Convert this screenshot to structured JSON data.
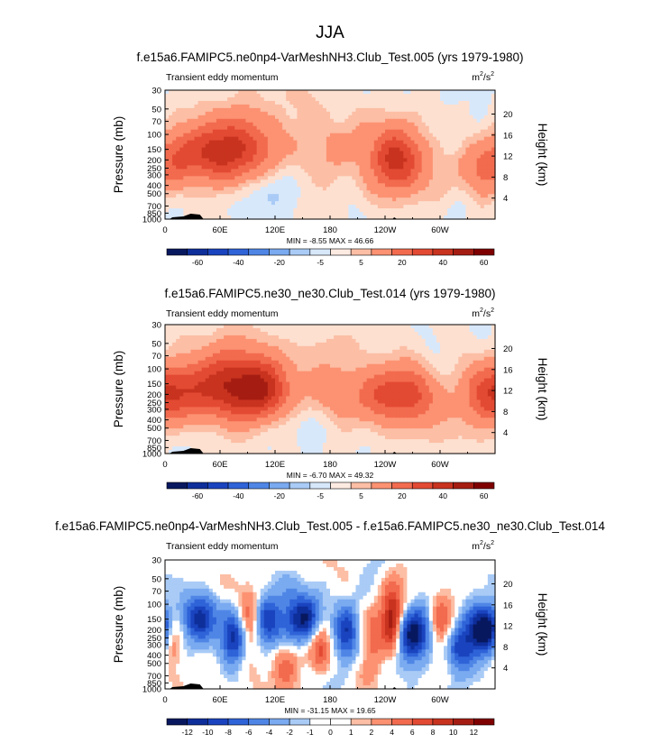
{
  "figure_title": "JJA",
  "colors": {
    "pos_scale": [
      "#fde0d0",
      "#fcbea5",
      "#fc9272",
      "#f26b4f",
      "#e34a33",
      "#c8331f",
      "#a51d12",
      "#7f0000"
    ],
    "neg_scale": [
      "#d8e8fb",
      "#a9cbf6",
      "#7aaaf0",
      "#4f86e6",
      "#2f63d8",
      "#1a44bf",
      "#0e2e9a",
      "#08185f"
    ],
    "white": "#ffffff",
    "topography": "#000000"
  },
  "chart_data": [
    {
      "type": "heatmap",
      "title": "f.e15a6.FAMIPC5.ne0np4-VarMeshNH3.Club_Test.005 (yrs 1979-1980)",
      "left_label": "Transient eddy momentum",
      "units_base": "m",
      "units_exp1": "2",
      "units_sep": "/s",
      "units_exp2": "2",
      "ylabel": "Pressure (mb)",
      "y2label": "Height (km)",
      "x_ticks": [
        "0",
        "60E",
        "120E",
        "180",
        "120W",
        "60W"
      ],
      "x_tick_values": [
        0,
        60,
        120,
        180,
        240,
        300
      ],
      "xlim": [
        0,
        360
      ],
      "y_ticks": [
        "30",
        "50",
        "70",
        "100",
        "150",
        "200",
        "250",
        "300",
        "400",
        "500",
        "700",
        "850",
        "1000"
      ],
      "y_tick_values": [
        30,
        50,
        70,
        100,
        150,
        200,
        250,
        300,
        400,
        500,
        700,
        850,
        1000
      ],
      "ylim": [
        30,
        1000
      ],
      "y2_ticks": [
        "4",
        "8",
        "12",
        "16",
        "20"
      ],
      "y2_tick_values": [
        4,
        8,
        12,
        16,
        20
      ],
      "min_label": "MIN =",
      "min_value": "-8.55",
      "max_label": "MAX =",
      "max_value": "46.66",
      "colorbar_labels": [
        "-60",
        "-40",
        "-20",
        "-5",
        "5",
        "20",
        "40",
        "60"
      ],
      "levels": [
        -70,
        -60,
        -50,
        -40,
        -30,
        -20,
        -10,
        -5,
        0,
        5,
        10,
        20,
        30,
        40,
        50,
        60,
        70
      ],
      "jets": [
        {
          "lon": 75,
          "p": 150,
          "amp": 40,
          "wlon": 28,
          "wz": 0.65
        },
        {
          "lon": 35,
          "p": 170,
          "amp": 20,
          "wlon": 22,
          "wz": 0.55
        },
        {
          "lon": 15,
          "p": 160,
          "amp": 12,
          "wlon": 14,
          "wz": 0.5
        },
        {
          "lon": 250,
          "p": 200,
          "amp": 32,
          "wlon": 18,
          "wz": 0.6
        },
        {
          "lon": 270,
          "p": 210,
          "amp": 14,
          "wlon": 22,
          "wz": 0.55
        },
        {
          "lon": 345,
          "p": 250,
          "amp": 20,
          "wlon": 20,
          "wz": 0.55
        },
        {
          "lon": 175,
          "p": 200,
          "amp": 6,
          "wlon": 30,
          "wz": 0.6
        },
        {
          "lon": 220,
          "p": 120,
          "amp": 6,
          "wlon": 40,
          "wz": 1.0
        },
        {
          "lon": 130,
          "p": 60,
          "amp": 5,
          "wlon": 40,
          "wz": 0.8
        },
        {
          "lon": 110,
          "p": 450,
          "amp": -7,
          "wlon": 20,
          "wz": 0.5
        }
      ],
      "noise_amp": 3.5,
      "noise_seed": 11
    },
    {
      "type": "heatmap",
      "title": "f.e15a6.FAMIPC5.ne30_ne30.Club_Test.014 (yrs 1979-1980)",
      "left_label": "Transient eddy momentum",
      "units_base": "m",
      "units_exp1": "2",
      "units_sep": "/s",
      "units_exp2": "2",
      "ylabel": "Pressure (mb)",
      "y2label": "Height (km)",
      "x_ticks": [
        "0",
        "60E",
        "120E",
        "180",
        "120W",
        "60W"
      ],
      "x_tick_values": [
        0,
        60,
        120,
        180,
        240,
        300
      ],
      "xlim": [
        0,
        360
      ],
      "y_ticks": [
        "30",
        "50",
        "70",
        "100",
        "150",
        "200",
        "250",
        "300",
        "400",
        "500",
        "700",
        "850",
        "1000"
      ],
      "y_tick_values": [
        30,
        50,
        70,
        100,
        150,
        200,
        250,
        300,
        400,
        500,
        700,
        850,
        1000
      ],
      "ylim": [
        30,
        1000
      ],
      "y2_ticks": [
        "4",
        "8",
        "12",
        "16",
        "20"
      ],
      "y2_tick_values": [
        4,
        8,
        12,
        16,
        20
      ],
      "min_label": "MIN =",
      "min_value": "-6.70",
      "max_label": "MAX =",
      "max_value": "49.32",
      "colorbar_labels": [
        "-60",
        "-40",
        "-20",
        "-5",
        "5",
        "20",
        "40",
        "60"
      ],
      "levels": [
        -70,
        -60,
        -50,
        -40,
        -30,
        -20,
        -10,
        -5,
        0,
        5,
        10,
        20,
        30,
        40,
        50,
        60,
        70
      ],
      "jets": [
        {
          "lon": 80,
          "p": 160,
          "amp": 44,
          "wlon": 32,
          "wz": 0.65
        },
        {
          "lon": 25,
          "p": 190,
          "amp": 22,
          "wlon": 25,
          "wz": 0.5
        },
        {
          "lon": 105,
          "p": 190,
          "amp": 20,
          "wlon": 20,
          "wz": 0.5
        },
        {
          "lon": 265,
          "p": 200,
          "amp": 30,
          "wlon": 24,
          "wz": 0.55
        },
        {
          "lon": 235,
          "p": 210,
          "amp": 15,
          "wlon": 18,
          "wz": 0.5
        },
        {
          "lon": 350,
          "p": 200,
          "amp": 28,
          "wlon": 20,
          "wz": 0.6
        },
        {
          "lon": 190,
          "p": 200,
          "amp": 14,
          "wlon": 18,
          "wz": 0.5
        },
        {
          "lon": 180,
          "p": 110,
          "amp": 6,
          "wlon": 50,
          "wz": 1.1
        },
        {
          "lon": 60,
          "p": 70,
          "amp": 5,
          "wlon": 40,
          "wz": 0.8
        },
        {
          "lon": 300,
          "p": 450,
          "amp": 5,
          "wlon": 30,
          "wz": 0.6
        },
        {
          "lon": 150,
          "p": 450,
          "amp": -6,
          "wlon": 18,
          "wz": 0.4
        }
      ],
      "noise_amp": 3.0,
      "noise_seed": 23
    },
    {
      "type": "heatmap",
      "title": "f.e15a6.FAMIPC5.ne0np4-VarMeshNH3.Club_Test.005 - f.e15a6.FAMIPC5.ne30_ne30.Club_Test.014",
      "left_label": "Transient eddy momentum",
      "units_base": "m",
      "units_exp1": "2",
      "units_sep": "/s",
      "units_exp2": "2",
      "ylabel": "Pressure (mb)",
      "y2label": "Height (km)",
      "x_ticks": [
        "0",
        "60E",
        "120E",
        "180",
        "120W",
        "60W"
      ],
      "x_tick_values": [
        0,
        60,
        120,
        180,
        240,
        300
      ],
      "xlim": [
        0,
        360
      ],
      "y_ticks": [
        "30",
        "50",
        "70",
        "100",
        "150",
        "200",
        "250",
        "300",
        "400",
        "500",
        "700",
        "850",
        "1000"
      ],
      "y_tick_values": [
        30,
        50,
        70,
        100,
        150,
        200,
        250,
        300,
        400,
        500,
        700,
        850,
        1000
      ],
      "ylim": [
        30,
        1000
      ],
      "y2_ticks": [
        "4",
        "8",
        "12",
        "16",
        "20"
      ],
      "y2_tick_values": [
        4,
        8,
        12,
        16,
        20
      ],
      "min_label": "MIN =",
      "min_value": "-31.15",
      "max_label": "MAX =",
      "max_value": "19.65",
      "colorbar_labels": [
        "-12",
        "-10",
        "-8",
        "-6",
        "-4",
        "-2",
        "-1",
        "0",
        "1",
        "2",
        "4",
        "6",
        "8",
        "10",
        "12"
      ],
      "levels": [
        -14,
        -12,
        -10,
        -8,
        -6,
        -4,
        -2,
        -1,
        0,
        1,
        2,
        4,
        6,
        8,
        10,
        12,
        14
      ],
      "jets": [
        {
          "lon": 40,
          "p": 150,
          "amp": -12,
          "wlon": 12,
          "wz": 0.45
        },
        {
          "lon": 75,
          "p": 260,
          "amp": -10,
          "wlon": 10,
          "wz": 0.45
        },
        {
          "lon": 110,
          "p": 160,
          "amp": -11,
          "wlon": 12,
          "wz": 0.5
        },
        {
          "lon": 150,
          "p": 150,
          "amp": -12,
          "wlon": 14,
          "wz": 0.5
        },
        {
          "lon": 198,
          "p": 220,
          "amp": -11,
          "wlon": 9,
          "wz": 0.5
        },
        {
          "lon": 270,
          "p": 220,
          "amp": -13,
          "wlon": 16,
          "wz": 0.5
        },
        {
          "lon": 350,
          "p": 200,
          "amp": -16,
          "wlon": 16,
          "wz": 0.5
        },
        {
          "lon": 320,
          "p": 350,
          "amp": -8,
          "wlon": 10,
          "wz": 0.4
        },
        {
          "lon": 248,
          "p": 180,
          "amp": 14,
          "wlon": 8,
          "wz": 0.6
        },
        {
          "lon": 8,
          "p": 250,
          "amp": 9,
          "wlon": 8,
          "wz": 0.5
        },
        {
          "lon": 93,
          "p": 170,
          "amp": 8,
          "wlon": 9,
          "wz": 0.6
        },
        {
          "lon": 170,
          "p": 300,
          "amp": 7,
          "wlon": 8,
          "wz": 0.5
        },
        {
          "lon": 228,
          "p": 250,
          "amp": 6,
          "wlon": 8,
          "wz": 0.6
        },
        {
          "lon": 300,
          "p": 150,
          "amp": 7,
          "wlon": 10,
          "wz": 0.5
        },
        {
          "lon": 130,
          "p": 500,
          "amp": 5,
          "wlon": 10,
          "wz": 0.5
        }
      ],
      "noise_amp": 2.0,
      "noise_seed": 37
    }
  ]
}
